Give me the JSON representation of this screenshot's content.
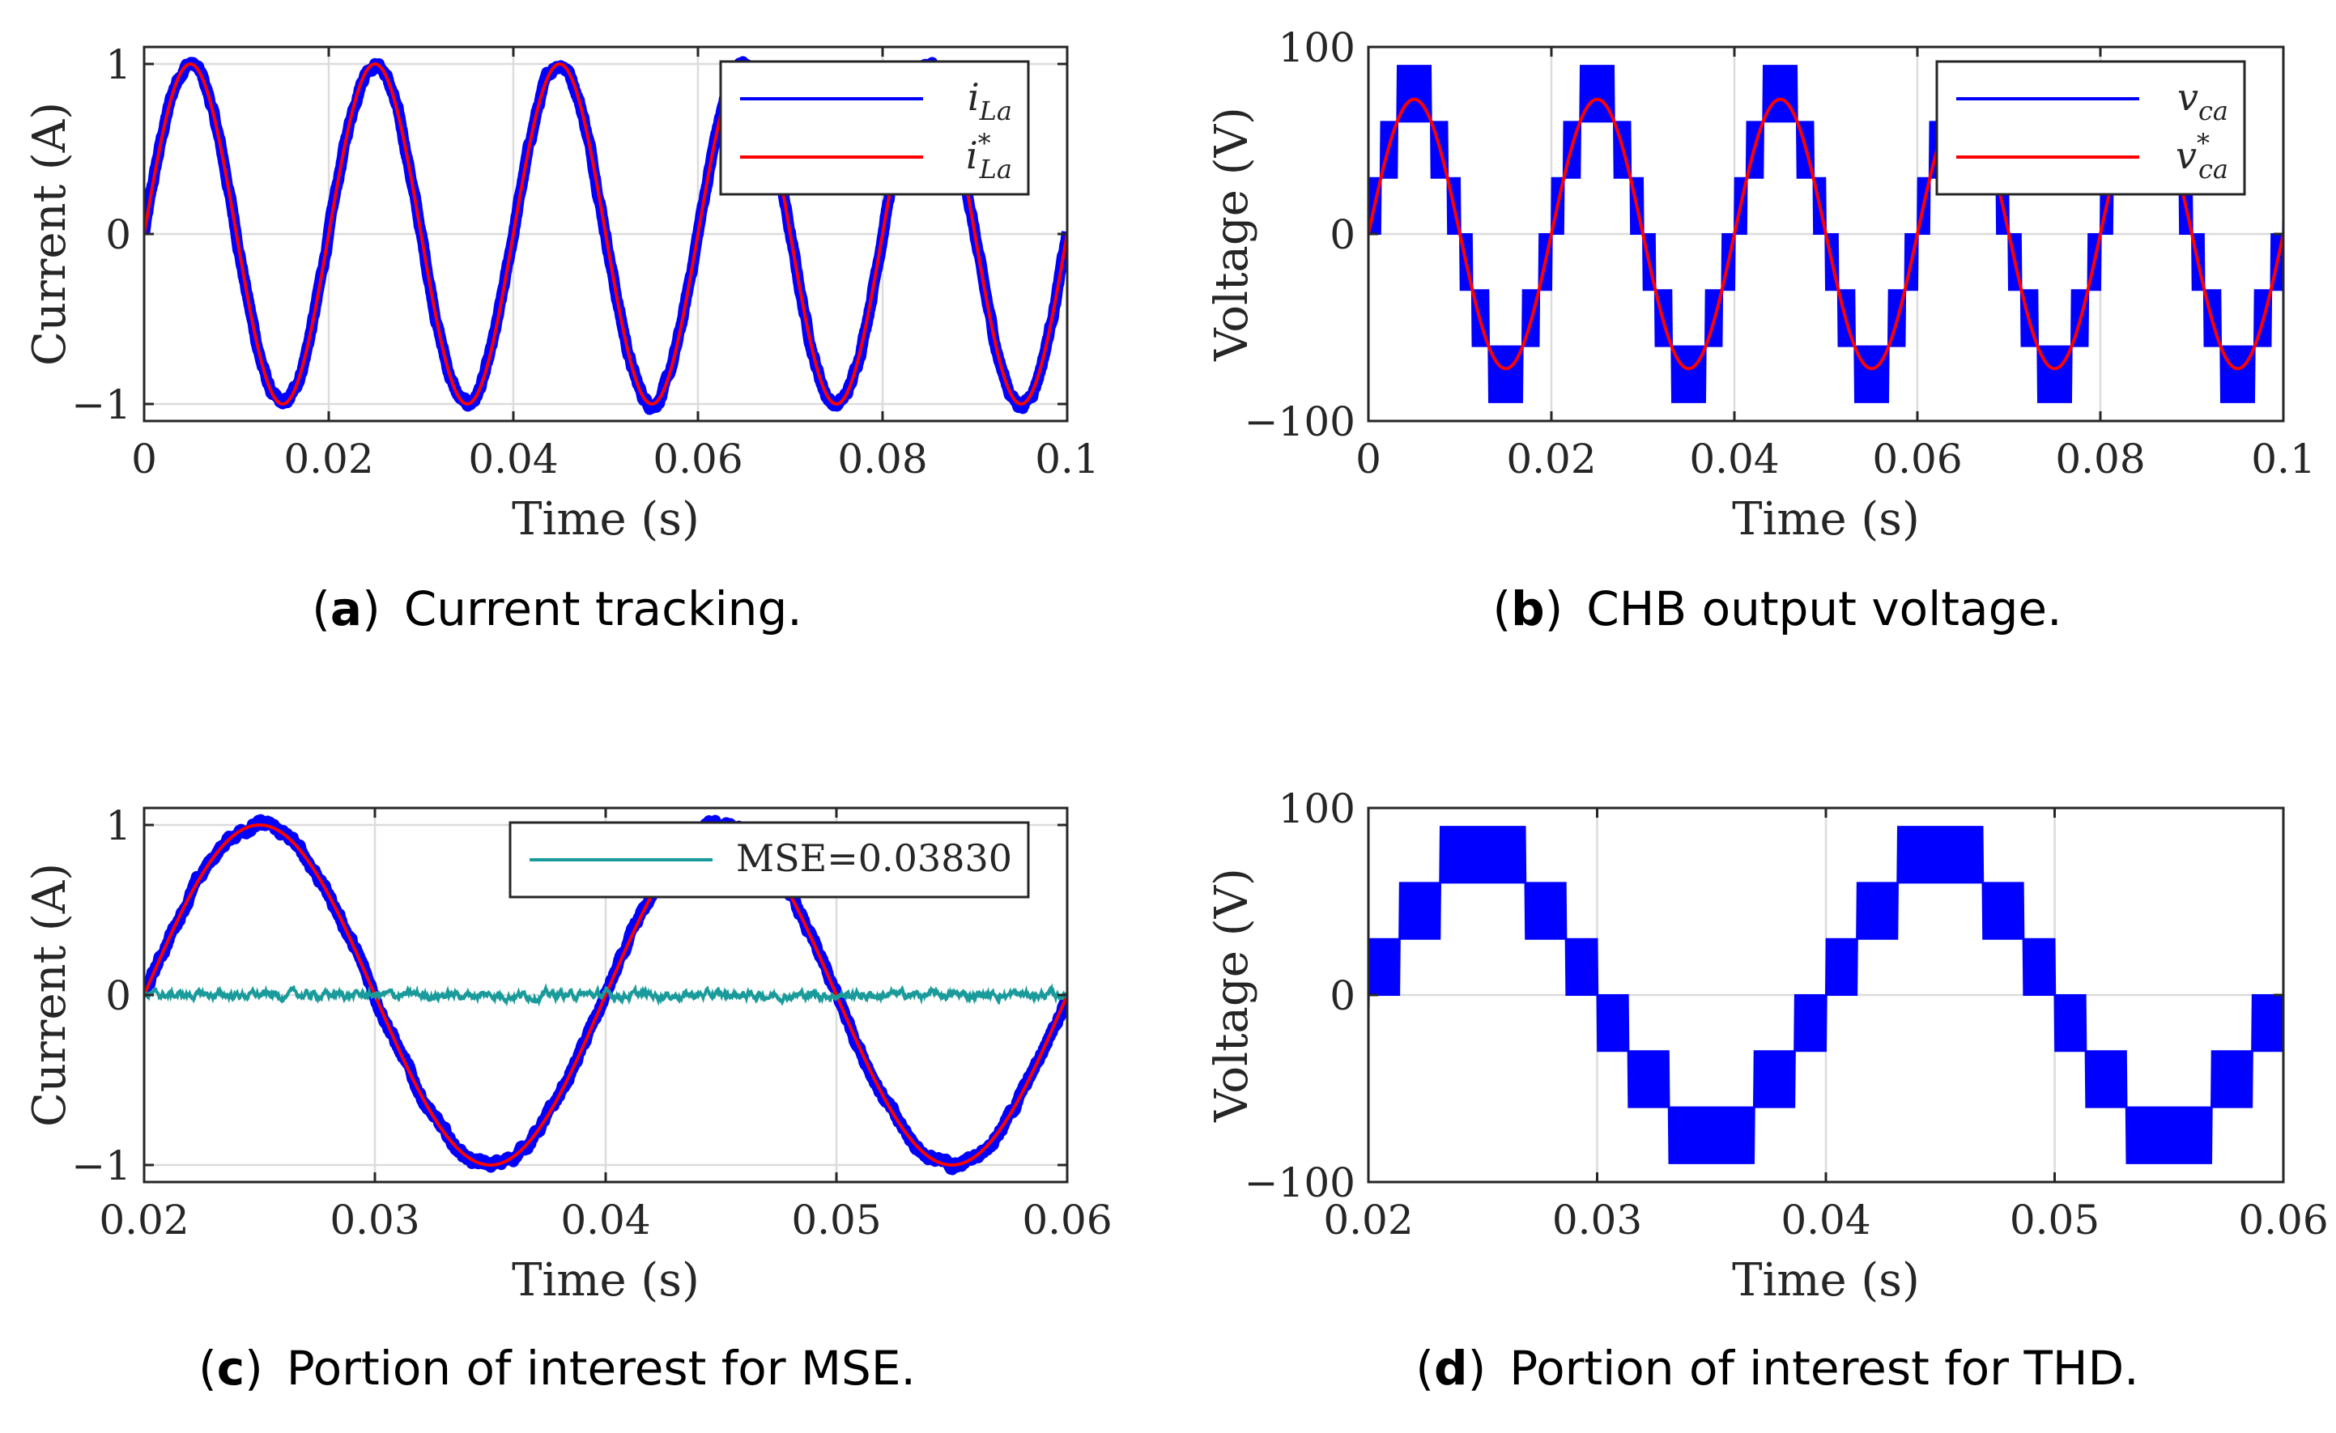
{
  "colors": {
    "measured": "#0000ff",
    "reference": "#ff0000",
    "error": "#1a9b9b",
    "grid": "#dcdcdc",
    "axis": "#262626"
  },
  "chart_data": [
    {
      "id": "a",
      "type": "line",
      "caption_letter": "a",
      "caption_text": "Current tracking.",
      "xlabel": "Time (s)",
      "ylabel": "Current (A)",
      "xlim": [
        0,
        0.1
      ],
      "ylim": [
        -1.1,
        1.1
      ],
      "xticks": [
        0,
        0.02,
        0.04,
        0.06,
        0.08,
        0.1
      ],
      "xtick_labels": [
        "0",
        "0.02",
        "0.04",
        "0.06",
        "0.08",
        "0.1"
      ],
      "yticks": [
        -1,
        0,
        1
      ],
      "ytick_labels": [
        "−1",
        "0",
        "1"
      ],
      "grid": true,
      "legend_position": "top-right",
      "series": [
        {
          "name": "i",
          "name_sub": "La",
          "name_sup": "",
          "kind": "noisy-sine",
          "amplitude": 1.0,
          "frequency_hz": 50,
          "band_width": 0.03
        },
        {
          "name": "i",
          "name_sub": "La",
          "name_sup": "*",
          "kind": "sine",
          "amplitude": 1.0,
          "frequency_hz": 50
        }
      ]
    },
    {
      "id": "b",
      "type": "line",
      "caption_letter": "b",
      "caption_text": "CHB output voltage.",
      "xlabel": "Time (s)",
      "ylabel": "Voltage (V)",
      "xlim": [
        0,
        0.1
      ],
      "ylim": [
        -100,
        100
      ],
      "xticks": [
        0,
        0.02,
        0.04,
        0.06,
        0.08,
        0.1
      ],
      "xtick_labels": [
        "0",
        "0.02",
        "0.04",
        "0.06",
        "0.08",
        "0.1"
      ],
      "yticks": [
        -100,
        0,
        100
      ],
      "ytick_labels": [
        "−100",
        "0",
        "100"
      ],
      "grid": true,
      "legend_position": "top-right",
      "series": [
        {
          "name": "v",
          "name_sub": "ca",
          "name_sup": "",
          "kind": "multilevel",
          "step_v": 30,
          "max_level": 3,
          "amplitude": 72,
          "frequency_hz": 50
        },
        {
          "name": "v",
          "name_sub": "ca",
          "name_sup": "*",
          "kind": "sine",
          "amplitude": 72,
          "frequency_hz": 50
        }
      ]
    },
    {
      "id": "c",
      "type": "line",
      "caption_letter": "c",
      "caption_text": "Portion of interest for MSE.",
      "xlabel": "Time (s)",
      "ylabel": "Current (A)",
      "xlim": [
        0.02,
        0.06
      ],
      "ylim": [
        -1.1,
        1.1
      ],
      "xticks": [
        0.02,
        0.03,
        0.04,
        0.05,
        0.06
      ],
      "xtick_labels": [
        "0.02",
        "0.03",
        "0.04",
        "0.05",
        "0.06"
      ],
      "yticks": [
        -1,
        0,
        1
      ],
      "ytick_labels": [
        "−1",
        "0",
        "1"
      ],
      "grid": true,
      "legend_position": "top-right",
      "series": [
        {
          "name": "",
          "kind": "noisy-sine",
          "amplitude": 1.0,
          "frequency_hz": 50,
          "band_width": 0.03
        },
        {
          "name": "",
          "kind": "sine",
          "amplitude": 1.0,
          "frequency_hz": 50
        },
        {
          "name": "MSE=0.03830",
          "kind": "error",
          "amplitude": 0.03
        }
      ]
    },
    {
      "id": "d",
      "type": "line",
      "caption_letter": "d",
      "caption_text": "Portion of interest for THD.",
      "xlabel": "Time (s)",
      "ylabel": "Voltage (V)",
      "xlim": [
        0.02,
        0.06
      ],
      "ylim": [
        -100,
        100
      ],
      "xticks": [
        0.02,
        0.03,
        0.04,
        0.05,
        0.06
      ],
      "xtick_labels": [
        "0.02",
        "0.03",
        "0.04",
        "0.05",
        "0.06"
      ],
      "yticks": [
        -100,
        0,
        100
      ],
      "ytick_labels": [
        "−100",
        "0",
        "100"
      ],
      "grid": true,
      "legend_position": "none",
      "series": [
        {
          "name": "",
          "kind": "multilevel",
          "step_v": 30,
          "max_level": 3,
          "amplitude": 72,
          "frequency_hz": 50
        }
      ]
    }
  ]
}
